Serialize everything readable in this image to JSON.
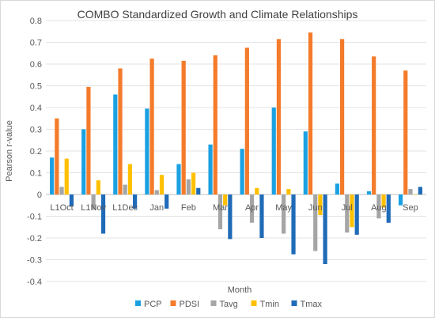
{
  "chart_data": {
    "type": "bar",
    "title": "COMBO Standardized Growth and Climate Relationships",
    "xlabel": "Month",
    "ylabel": "Pearson r-value",
    "ylim": [
      -0.4,
      0.8
    ],
    "yticks": [
      0.8,
      0.7,
      0.6,
      0.5,
      0.4,
      0.3,
      0.2,
      0.1,
      0,
      -0.1,
      -0.2,
      -0.3,
      -0.4
    ],
    "ytick_labels": [
      "0.8",
      "0.7",
      "0.6",
      "0.5",
      "0.4",
      "0.3",
      "0.2",
      "0.1",
      "0",
      "-0.1",
      "-0.2",
      "-0.3",
      "-0.4"
    ],
    "grid": true,
    "legend_position": "bottom",
    "categories": [
      "L1Oct",
      "L1Nov",
      "L1Dec",
      "Jan",
      "Feb",
      "Mar",
      "Apr",
      "May",
      "Jun",
      "Jul",
      "Aug",
      "Sep"
    ],
    "series": [
      {
        "name": "PCP",
        "color": "#1ba1e2",
        "values": [
          0.17,
          0.3,
          0.46,
          0.395,
          0.14,
          0.23,
          0.21,
          0.4,
          0.29,
          0.05,
          0.015,
          -0.05
        ]
      },
      {
        "name": "PDSI",
        "color": "#f47b2a",
        "values": [
          0.35,
          0.495,
          0.58,
          0.625,
          0.615,
          0.64,
          0.675,
          0.715,
          0.745,
          0.715,
          0.635,
          0.57
        ]
      },
      {
        "name": "Tavg",
        "color": "#a5a5a5",
        "values": [
          0.035,
          -0.07,
          0.045,
          0.02,
          0.07,
          -0.16,
          -0.13,
          -0.18,
          -0.26,
          -0.175,
          -0.11,
          0.025
        ]
      },
      {
        "name": "Tmin",
        "color": "#ffc000",
        "values": [
          0.165,
          0.065,
          0.14,
          0.09,
          0.1,
          -0.05,
          0.03,
          0.025,
          -0.095,
          -0.15,
          -0.06,
          0.0
        ]
      },
      {
        "name": "Tmax",
        "color": "#1f6bb8",
        "values": [
          -0.055,
          -0.18,
          -0.065,
          -0.065,
          0.03,
          -0.205,
          -0.2,
          -0.275,
          -0.32,
          -0.185,
          -0.13,
          0.035
        ]
      }
    ]
  }
}
